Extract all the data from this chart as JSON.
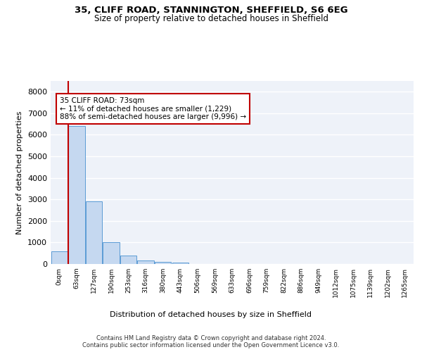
{
  "title_line1": "35, CLIFF ROAD, STANNINGTON, SHEFFIELD, S6 6EG",
  "title_line2": "Size of property relative to detached houses in Sheffield",
  "xlabel": "Distribution of detached houses by size in Sheffield",
  "ylabel": "Number of detached properties",
  "categories": [
    "0sqm",
    "63sqm",
    "127sqm",
    "190sqm",
    "253sqm",
    "316sqm",
    "380sqm",
    "443sqm",
    "506sqm",
    "569sqm",
    "633sqm",
    "696sqm",
    "759sqm",
    "822sqm",
    "886sqm",
    "949sqm",
    "1012sqm",
    "1075sqm",
    "1139sqm",
    "1202sqm",
    "1265sqm"
  ],
  "values": [
    600,
    6400,
    2900,
    1000,
    380,
    175,
    110,
    80,
    0,
    0,
    0,
    0,
    0,
    0,
    0,
    0,
    0,
    0,
    0,
    0,
    0
  ],
  "bar_color": "#c5d8f0",
  "bar_edge_color": "#5b9bd5",
  "vline_x": 0.5,
  "vline_color": "#c00000",
  "annotation_title": "35 CLIFF ROAD: 73sqm",
  "annotation_line2": "← 11% of detached houses are smaller (1,229)",
  "annotation_line3": "88% of semi-detached houses are larger (9,996) →",
  "annotation_box_color": "#c00000",
  "ylim": [
    0,
    8500
  ],
  "yticks": [
    0,
    1000,
    2000,
    3000,
    4000,
    5000,
    6000,
    7000,
    8000
  ],
  "background_color": "#eef2f9",
  "grid_color": "#ffffff",
  "footer_line1": "Contains HM Land Registry data © Crown copyright and database right 2024.",
  "footer_line2": "Contains public sector information licensed under the Open Government Licence v3.0."
}
